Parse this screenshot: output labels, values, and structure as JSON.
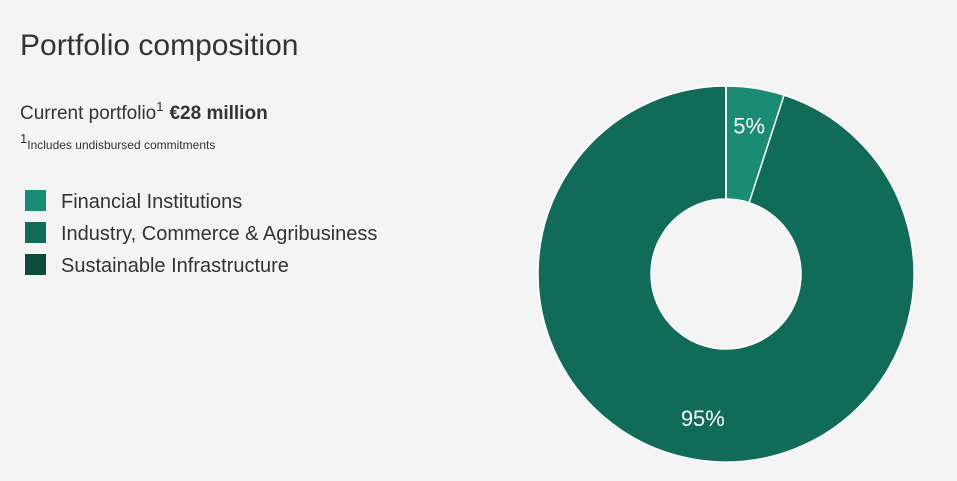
{
  "chart_data": {
    "type": "donut",
    "title": "Portfolio composition",
    "subtitle_label": "Current portfolio",
    "subtitle_mark": "1",
    "subtitle_value": "€28 million",
    "footnote_mark": "1",
    "footnote": "Includes undisbursed commitments",
    "categories": [
      "Financial Institutions",
      "Industry, Commerce & Agribusiness",
      "Sustainable Infrastructure"
    ],
    "values": [
      5,
      95,
      0
    ],
    "value_labels": [
      "5%",
      "95%",
      null
    ],
    "colors": [
      "#1a8c74",
      "#116b59",
      "#0c4a3c"
    ]
  }
}
